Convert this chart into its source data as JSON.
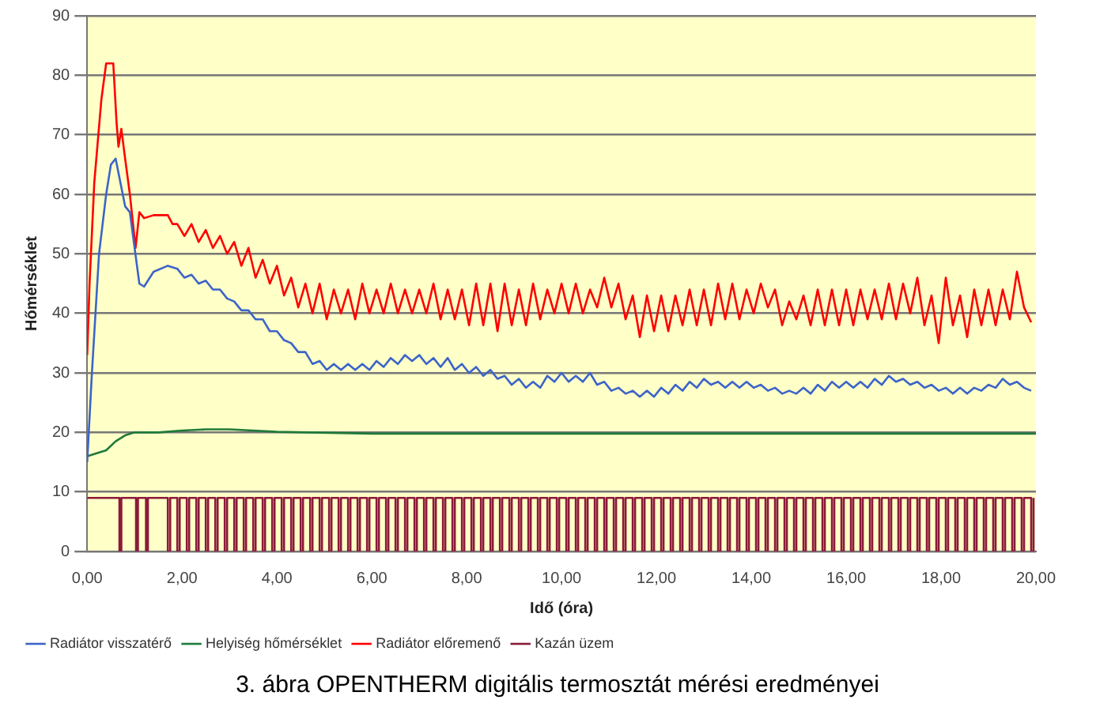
{
  "chart_data": {
    "type": "line",
    "ylabel": "Hőmérséklet",
    "xlabel": "Idő (óra)",
    "annotations": [
      "3. ábra OPENTHERM digitális termosztát mérési eredményei"
    ],
    "xlim": [
      0,
      20
    ],
    "xticks": [
      {
        "value": 0,
        "label": "0,00"
      },
      {
        "value": 2,
        "label": "2,00"
      },
      {
        "value": 4,
        "label": "4,00"
      },
      {
        "value": 6,
        "label": "6,00"
      },
      {
        "value": 8,
        "label": "8,00"
      },
      {
        "value": 10,
        "label": "10,00"
      },
      {
        "value": 12,
        "label": "12,00"
      },
      {
        "value": 14,
        "label": "14,00"
      },
      {
        "value": 16,
        "label": "16,00"
      },
      {
        "value": 18,
        "label": "18,00"
      },
      {
        "value": 20,
        "label": "20,00"
      }
    ],
    "ylim": [
      0,
      90
    ],
    "yticks": [
      0,
      10,
      20,
      30,
      40,
      50,
      60,
      70,
      80,
      90
    ],
    "grid": "y",
    "legend": "bottom left",
    "marker": "none",
    "line_style": "solid",
    "series": [
      {
        "name": "Radiátor visszatérő",
        "color": "#3c64c8",
        "x": [
          0,
          0.1,
          0.25,
          0.4,
          0.5,
          0.6,
          0.7,
          0.8,
          0.9,
          1.0,
          1.1,
          1.2,
          1.4,
          1.7,
          1.9,
          2.05,
          2.2,
          2.35,
          2.5,
          2.65,
          2.8,
          2.95,
          3.1,
          3.25,
          3.4,
          3.55,
          3.7,
          3.85,
          4,
          4.15,
          4.3,
          4.45,
          4.6,
          4.75,
          4.9,
          5.05,
          5.2,
          5.35,
          5.5,
          5.65,
          5.8,
          5.95,
          6.1,
          6.25,
          6.4,
          6.55,
          6.7,
          6.85,
          7,
          7.15,
          7.3,
          7.45,
          7.6,
          7.75,
          7.9,
          8.05,
          8.2,
          8.35,
          8.5,
          8.65,
          8.8,
          8.95,
          9.1,
          9.25,
          9.4,
          9.55,
          9.7,
          9.85,
          10,
          10.15,
          10.3,
          10.45,
          10.6,
          10.75,
          10.9,
          11.05,
          11.2,
          11.35,
          11.5,
          11.65,
          11.8,
          11.95,
          12.1,
          12.25,
          12.4,
          12.55,
          12.7,
          12.85,
          13,
          13.15,
          13.3,
          13.45,
          13.6,
          13.75,
          13.9,
          14.05,
          14.2,
          14.35,
          14.5,
          14.65,
          14.8,
          14.95,
          15.1,
          15.25,
          15.4,
          15.55,
          15.7,
          15.85,
          16,
          16.15,
          16.3,
          16.45,
          16.6,
          16.75,
          16.9,
          17.05,
          17.2,
          17.35,
          17.5,
          17.65,
          17.8,
          17.95,
          18.1,
          18.25,
          18.4,
          18.55,
          18.7,
          18.85,
          19,
          19.15,
          19.3,
          19.45,
          19.6,
          19.75,
          19.9
        ],
        "values": [
          15,
          30,
          50,
          60,
          65,
          66,
          62,
          58,
          57,
          51,
          45,
          44.5,
          47,
          48,
          47.5,
          46,
          46.5,
          45,
          45.5,
          44,
          44,
          42.5,
          42,
          40.5,
          40.5,
          39,
          39,
          37,
          37,
          35.5,
          35,
          33.5,
          33.5,
          31.5,
          32,
          30.5,
          31.5,
          30.5,
          31.5,
          30.5,
          31.5,
          30.5,
          32,
          31,
          32.5,
          31.5,
          33,
          32,
          33,
          31.5,
          32.5,
          31,
          32.5,
          30.5,
          31.5,
          30,
          31,
          29.5,
          30.5,
          29,
          29.5,
          28,
          29,
          27.5,
          28.5,
          27.5,
          29.5,
          28.5,
          30,
          28.5,
          29.5,
          28.5,
          30,
          28,
          28.5,
          27,
          27.5,
          26.5,
          27,
          26,
          27,
          26,
          27.5,
          26.5,
          28,
          27,
          28.5,
          27.5,
          29,
          28,
          28.5,
          27.5,
          28.5,
          27.5,
          28.5,
          27.5,
          28,
          27,
          27.5,
          26.5,
          27,
          26.5,
          27.5,
          26.5,
          28,
          27,
          28.5,
          27.5,
          28.5,
          27.5,
          28.5,
          27.5,
          29,
          28,
          29.5,
          28.5,
          29,
          28,
          28.5,
          27.5,
          28,
          27,
          27.5,
          26.5,
          27.5,
          26.5,
          27.5,
          27,
          28,
          27.5,
          29,
          28,
          28.5,
          27.5,
          27
        ]
      },
      {
        "name": "Helyiség hőmérséklet",
        "color": "#1f7a3a",
        "x": [
          0,
          0.2,
          0.4,
          0.6,
          0.8,
          1,
          1.5,
          2,
          2.5,
          3,
          3.5,
          4,
          6,
          10,
          14,
          20
        ],
        "values": [
          16,
          16.5,
          17,
          18.5,
          19.5,
          20,
          20,
          20.3,
          20.5,
          20.5,
          20.3,
          20.1,
          19.8,
          19.8,
          19.8,
          19.8
        ]
      },
      {
        "name": "Radiátor előremenő",
        "color": "#ff0000",
        "x": [
          0,
          0.05,
          0.15,
          0.3,
          0.4,
          0.55,
          0.62,
          0.66,
          0.72,
          0.8,
          0.9,
          1.02,
          1.1,
          1.2,
          1.4,
          1.7,
          1.8,
          1.9,
          2.05,
          2.2,
          2.35,
          2.5,
          2.65,
          2.8,
          2.95,
          3.1,
          3.25,
          3.4,
          3.55,
          3.7,
          3.85,
          4,
          4.15,
          4.3,
          4.45,
          4.6,
          4.75,
          4.9,
          5.05,
          5.2,
          5.35,
          5.5,
          5.65,
          5.8,
          5.95,
          6.1,
          6.25,
          6.4,
          6.55,
          6.7,
          6.85,
          7,
          7.15,
          7.3,
          7.45,
          7.6,
          7.75,
          7.9,
          8.05,
          8.2,
          8.35,
          8.5,
          8.65,
          8.8,
          8.95,
          9.1,
          9.25,
          9.4,
          9.55,
          9.7,
          9.85,
          10,
          10.15,
          10.3,
          10.45,
          10.6,
          10.75,
          10.9,
          11.05,
          11.2,
          11.35,
          11.5,
          11.65,
          11.8,
          11.95,
          12.1,
          12.25,
          12.4,
          12.55,
          12.7,
          12.85,
          13,
          13.15,
          13.3,
          13.45,
          13.6,
          13.75,
          13.9,
          14.05,
          14.2,
          14.35,
          14.5,
          14.65,
          14.8,
          14.95,
          15.1,
          15.25,
          15.4,
          15.55,
          15.7,
          15.85,
          16,
          16.15,
          16.3,
          16.45,
          16.6,
          16.75,
          16.9,
          17.05,
          17.2,
          17.35,
          17.5,
          17.65,
          17.8,
          17.95,
          18.1,
          18.25,
          18.4,
          18.55,
          18.7,
          18.85,
          19,
          19.15,
          19.3,
          19.45,
          19.6,
          19.75,
          19.9
        ],
        "values": [
          33,
          45,
          62,
          76,
          82,
          82,
          72,
          68,
          71,
          66,
          60,
          51,
          57,
          56,
          56.5,
          56.5,
          55,
          55,
          53,
          55,
          52,
          54,
          51,
          53,
          50,
          52,
          48,
          51,
          46,
          49,
          45,
          48,
          43,
          46,
          41,
          45,
          40,
          45,
          39,
          44,
          40,
          44,
          39,
          45,
          40,
          44,
          40,
          45,
          40,
          44,
          40,
          44,
          40,
          45,
          39,
          44,
          39,
          44,
          38,
          45,
          38,
          45,
          37,
          45,
          38,
          44,
          38,
          45,
          39,
          44,
          40,
          45,
          40,
          45,
          40,
          44,
          41,
          46,
          41,
          45,
          39,
          43,
          36,
          43,
          37,
          43,
          37,
          43,
          38,
          44,
          38,
          44,
          38,
          45,
          39,
          45,
          39,
          44,
          40,
          45,
          41,
          44,
          38,
          42,
          39,
          43,
          38,
          44,
          38,
          44,
          38,
          44,
          38,
          44,
          39,
          44,
          39,
          45,
          39,
          45,
          40,
          46,
          38,
          43,
          35,
          46,
          38,
          43,
          36,
          44,
          38,
          44,
          38,
          44,
          39,
          47,
          41,
          38.5
        ]
      },
      {
        "name": "Kazán üzem",
        "type": "step",
        "color": "#8b1a3a",
        "x": [
          0,
          0.68,
          0.72,
          1.03,
          1.07,
          1.24,
          1.28,
          1.7,
          1.75,
          1.9,
          1.95,
          2.1,
          2.15,
          2.3,
          2.35,
          2.5,
          2.55,
          2.7,
          2.75,
          2.9,
          2.95,
          3.1,
          3.15,
          3.3,
          3.35,
          3.5,
          3.55,
          3.7,
          3.75,
          3.9,
          3.95,
          4.1,
          4.15,
          4.3,
          4.35,
          4.5,
          4.55,
          4.7,
          4.75,
          4.9,
          4.95,
          5.1,
          5.15,
          5.3,
          5.35,
          5.5,
          5.55,
          5.7,
          5.75,
          5.9,
          5.95,
          6.1,
          6.15,
          6.3,
          6.35,
          6.5,
          6.55,
          6.7,
          6.75,
          6.9,
          6.95,
          7.1,
          7.15,
          7.3,
          7.35,
          7.5,
          7.55,
          7.7,
          7.75,
          7.9,
          7.95,
          8.1,
          8.15,
          8.3,
          8.35,
          8.5,
          8.55,
          8.7,
          8.75,
          8.9,
          8.95,
          9.1,
          9.15,
          9.3,
          9.35,
          9.5,
          9.55,
          9.7,
          9.75,
          9.9,
          9.95,
          10.1,
          10.15,
          10.3,
          10.35,
          10.5,
          10.55,
          10.7,
          10.75,
          10.9,
          10.95,
          11.1,
          11.15,
          11.3,
          11.35,
          11.5,
          11.55,
          11.7,
          11.75,
          11.9,
          11.95,
          12.1,
          12.15,
          12.3,
          12.35,
          12.5,
          12.55,
          12.7,
          12.75,
          12.9,
          12.95,
          13.1,
          13.15,
          13.3,
          13.35,
          13.5,
          13.55,
          13.7,
          13.75,
          13.9,
          13.95,
          14.1,
          14.15,
          14.3,
          14.35,
          14.5,
          14.55,
          14.7,
          14.75,
          14.9,
          14.95,
          15.1,
          15.15,
          15.3,
          15.35,
          15.5,
          15.55,
          15.7,
          15.75,
          15.9,
          15.95,
          16.1,
          16.15,
          16.3,
          16.35,
          16.5,
          16.55,
          16.7,
          16.75,
          16.9,
          16.95,
          17.1,
          17.15,
          17.3,
          17.35,
          17.5,
          17.55,
          17.7,
          17.75,
          17.9,
          17.95,
          18.1,
          18.15,
          18.3,
          18.35,
          18.5,
          18.55,
          18.7,
          18.75,
          18.9,
          18.95,
          19.1,
          19.15,
          19.3,
          19.35,
          19.5,
          19.55,
          19.7,
          19.75,
          19.9,
          19.95
        ],
        "values": [
          9,
          0,
          9,
          0,
          9,
          0,
          9,
          0,
          9,
          0,
          9,
          0,
          9,
          0,
          9,
          0,
          9,
          0,
          9,
          0,
          9,
          0,
          9,
          0,
          9,
          0,
          9,
          0,
          9,
          0,
          9,
          0,
          9,
          0,
          9,
          0,
          9,
          0,
          9,
          0,
          9,
          0,
          9,
          0,
          9,
          0,
          9,
          0,
          9,
          0,
          9,
          0,
          9,
          0,
          9,
          0,
          9,
          0,
          9,
          0,
          9,
          0,
          9,
          0,
          9,
          0,
          9,
          0,
          9,
          0,
          9,
          0,
          9,
          0,
          9,
          0,
          9,
          0,
          9,
          0,
          9,
          0,
          9,
          0,
          9,
          0,
          9,
          0,
          9,
          0,
          9,
          0,
          9,
          0,
          9,
          0,
          9,
          0,
          9,
          0,
          9,
          0,
          9,
          0,
          9,
          0,
          9,
          0,
          9,
          0,
          9,
          0,
          9,
          0,
          9,
          0,
          9,
          0,
          9,
          0,
          9,
          0,
          9,
          0,
          9,
          0,
          9,
          0,
          9,
          0,
          9,
          0,
          9,
          0,
          9,
          0,
          9,
          0,
          9,
          0,
          9,
          0,
          9,
          0,
          9,
          0,
          9,
          0,
          9,
          0,
          9,
          0,
          9,
          0,
          9,
          0,
          9,
          0,
          9,
          0,
          9,
          0,
          9,
          0,
          9,
          0,
          9,
          0,
          9,
          0,
          9,
          0,
          9,
          0,
          9,
          0,
          9,
          0,
          9,
          0,
          9,
          0,
          9,
          0,
          9,
          0,
          9,
          0,
          9,
          0,
          9
        ]
      }
    ]
  }
}
